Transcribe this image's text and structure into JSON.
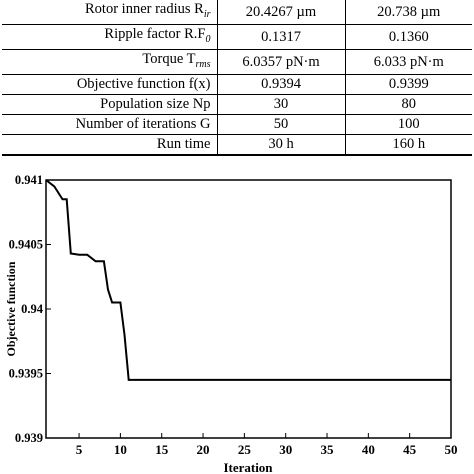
{
  "table": {
    "rows": [
      {
        "label": "Rotor inner radius R",
        "sub": "ir",
        "v1": "20.4267 µm",
        "v2": "20.738 µm"
      },
      {
        "label": "Ripple factor R.F",
        "sub": "0",
        "v1": "0.1317",
        "v2": "0.1360"
      },
      {
        "label": "Torque T",
        "sub": "rms",
        "v1": "6.0357 pN·m",
        "v2": "6.033 pN·m"
      },
      {
        "label": "Objective function f(x)",
        "sub": "",
        "v1": "0.9394",
        "v2": "0.9399"
      },
      {
        "label": "Population size Np",
        "sub": "",
        "v1": "30",
        "v2": "80"
      },
      {
        "label": "Number of iterations G",
        "sub": "",
        "v1": "50",
        "v2": "100"
      },
      {
        "label": "Run time",
        "sub": "",
        "v1": "30 h",
        "v2": "160 h"
      }
    ]
  },
  "chart_data": {
    "type": "line",
    "title": "",
    "xlabel": "Iteration",
    "ylabel": "Objective function",
    "xlim": [
      1,
      50
    ],
    "ylim": [
      0.939,
      0.941
    ],
    "xticks": [
      5,
      10,
      15,
      20,
      25,
      30,
      35,
      40,
      45,
      50
    ],
    "yticks": [
      0.939,
      0.9395,
      0.94,
      0.9405,
      0.941
    ],
    "ytick_labels": [
      "0.939",
      "0.9395",
      "0.94",
      "0.9405",
      "0.941"
    ],
    "grid": false,
    "series": [
      {
        "x": [
          1,
          2,
          3,
          3.5,
          4,
          5,
          6,
          7,
          8,
          8.5,
          9,
          10,
          10.5,
          11,
          50
        ],
        "y": [
          0.941,
          0.94095,
          0.94085,
          0.94085,
          0.94043,
          0.94042,
          0.94042,
          0.94037,
          0.94037,
          0.94015,
          0.94005,
          0.94005,
          0.9398,
          0.93945,
          0.93945
        ]
      }
    ]
  }
}
